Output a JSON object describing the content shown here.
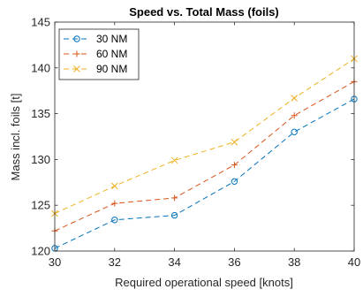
{
  "chart_data": {
    "type": "line",
    "title": "Speed vs. Total Mass (foils)",
    "xlabel": "Required operational speed [knots]",
    "ylabel": "Mass incl. foils [t]",
    "x": [
      30,
      32,
      34,
      36,
      38,
      40
    ],
    "xlim": [
      30,
      40
    ],
    "ylim": [
      120,
      145
    ],
    "xticks": [
      30,
      32,
      34,
      36,
      38,
      40
    ],
    "yticks": [
      120,
      125,
      130,
      135,
      140,
      145
    ],
    "grid": false,
    "legend_position": "top-left",
    "series": [
      {
        "name": "30 NM",
        "color": "#0072BD",
        "marker": "circle",
        "line_style": "dashed",
        "values": [
          120.3,
          123.4,
          123.9,
          127.6,
          133.0,
          136.6
        ]
      },
      {
        "name": "60 NM",
        "color": "#D95319",
        "marker": "plus",
        "line_style": "dashed",
        "values": [
          122.2,
          125.2,
          125.8,
          129.4,
          134.8,
          138.5
        ]
      },
      {
        "name": "90 NM",
        "color": "#EDB120",
        "marker": "cross",
        "line_style": "dashed",
        "values": [
          124.1,
          127.1,
          129.9,
          131.9,
          136.7,
          141.0
        ]
      }
    ]
  }
}
